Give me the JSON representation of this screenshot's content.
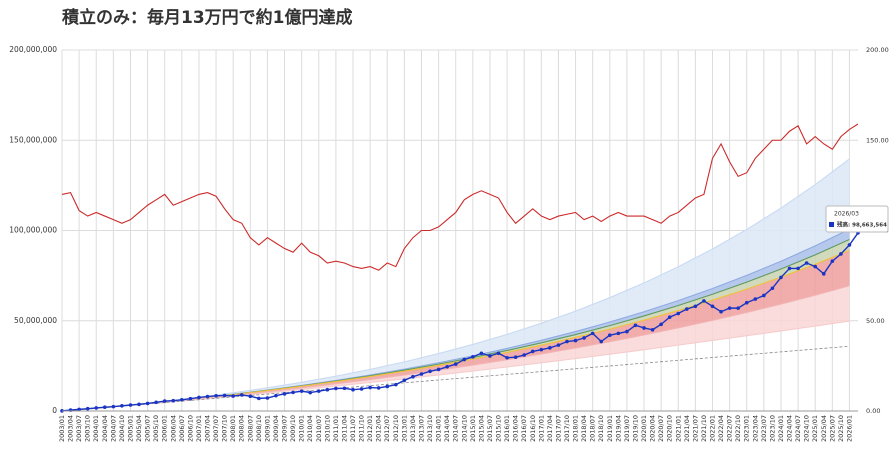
{
  "chart_data": {
    "type": "line",
    "title": "積立のみ：毎月13万円で約1億円達成",
    "categories": [
      "2003/01",
      "2003/04",
      "2003/07",
      "2003/10",
      "2004/01",
      "2004/04",
      "2004/07",
      "2004/10",
      "2005/01",
      "2005/04",
      "2005/07",
      "2005/10",
      "2006/01",
      "2006/04",
      "2006/07",
      "2006/10",
      "2007/01",
      "2007/04",
      "2007/07",
      "2007/10",
      "2008/01",
      "2008/04",
      "2008/07",
      "2008/10",
      "2009/01",
      "2009/04",
      "2009/07",
      "2009/10",
      "2010/01",
      "2010/04",
      "2010/07",
      "2010/10",
      "2011/01",
      "2011/04",
      "2011/07",
      "2011/10",
      "2012/01",
      "2012/04",
      "2012/07",
      "2012/10",
      "2013/01",
      "2013/04",
      "2013/07",
      "2013/10",
      "2014/01",
      "2014/04",
      "2014/07",
      "2014/10",
      "2015/01",
      "2015/04",
      "2015/07",
      "2015/10",
      "2016/01",
      "2016/04",
      "2016/07",
      "2016/10",
      "2017/01",
      "2017/04",
      "2017/07",
      "2017/10",
      "2018/01",
      "2018/04",
      "2018/07",
      "2018/10",
      "2019/01",
      "2019/04",
      "2019/07",
      "2019/10",
      "2020/01",
      "2020/04",
      "2020/07",
      "2020/10",
      "2021/01",
      "2021/04",
      "2021/07",
      "2021/10",
      "2022/01",
      "2022/04",
      "2022/07",
      "2022/10",
      "2023/01",
      "2023/04",
      "2023/07",
      "2023/10",
      "2024/01",
      "2024/04",
      "2024/07",
      "2024/10",
      "2025/01",
      "2025/04",
      "2025/07",
      "2025/10",
      "2026/01",
      null
    ],
    "series": [
      {
        "color": "#cc2a2a",
        "axis": "y2",
        "values": [
          120,
          121,
          111,
          108,
          110,
          108,
          106,
          104,
          106,
          110,
          114,
          117,
          120,
          114,
          116,
          118,
          120,
          121,
          119,
          112,
          106,
          104,
          96,
          92,
          96,
          93,
          90,
          88,
          93,
          88,
          86,
          82,
          83,
          82,
          80,
          79,
          80,
          78,
          82,
          80,
          90,
          96,
          100,
          100,
          102,
          106,
          110,
          117,
          120,
          122,
          120,
          118,
          110,
          104,
          108,
          112,
          108,
          106,
          108,
          109,
          110,
          106,
          108,
          105,
          108,
          110,
          108,
          108,
          108,
          106,
          104,
          108,
          110,
          114,
          118,
          120,
          140,
          148,
          138,
          130,
          132,
          140,
          145,
          150,
          150,
          155,
          158,
          148,
          152,
          148,
          145,
          152,
          156,
          159
        ]
      },
      {
        "color": "#1a35c4",
        "markers": true,
        "values": [
          100000,
          500000,
          900000,
          1300000,
          1700000,
          2100000,
          2400000,
          2900000,
          3300000,
          3700000,
          4200000,
          4800000,
          5500000,
          5700000,
          6200000,
          6800000,
          7500000,
          8000000,
          8400000,
          8600000,
          8300000,
          8900000,
          8200000,
          7000000,
          7200000,
          8500000,
          9500000,
          10300000,
          11000000,
          10200000,
          11000000,
          11800000,
          12500000,
          12600000,
          11800000,
          12200000,
          13000000,
          12800000,
          13600000,
          14600000,
          17000000,
          19000000,
          20500000,
          22000000,
          23000000,
          24500000,
          26000000,
          28500000,
          30000000,
          32000000,
          30500000,
          32000000,
          29500000,
          29800000,
          31000000,
          33000000,
          34000000,
          35000000,
          36500000,
          38500000,
          39000000,
          40500000,
          43000000,
          38500000,
          42000000,
          43000000,
          44000000,
          47500000,
          46000000,
          45000000,
          48000000,
          52000000,
          54000000,
          56500000,
          58000000,
          61000000,
          58000000,
          55000000,
          57000000,
          57000000,
          60000000,
          62000000,
          64000000,
          68000000,
          74000000,
          79000000,
          79000000,
          82000000,
          80000000,
          76000000,
          83000000,
          87000000,
          92000000,
          98663564
        ]
      }
    ],
    "projection": {
      "x": [
        "2003/01",
        "2004/01",
        "2005/01",
        "2006/01",
        "2007/01",
        "2008/01",
        "2009/01",
        "2010/01",
        "2011/01",
        "2012/01",
        "2013/01",
        "2014/01",
        "2015/01",
        "2016/01",
        "2017/01",
        "2018/01",
        "2019/01",
        "2020/01",
        "2021/01",
        "2022/01",
        "2023/01",
        "2024/01",
        "2025/01",
        "2026/01"
      ],
      "series": [
        {
          "color": "#c9daf2",
          "fill": "#dce7f7",
          "values": [
            0,
            1590000,
            3370000,
            5370000,
            7600000,
            10090000,
            12840000,
            15910000,
            19300000,
            23060000,
            27220000,
            31810000,
            36870000,
            42450000,
            48590000,
            55340000,
            62780000,
            70950000,
            79920000,
            89770000,
            100570000,
            112410000,
            125400000,
            139640000
          ]
        },
        {
          "color": "#8eaae0",
          "fill": "#a9c0ea",
          "values": [
            0,
            1560000,
            3260000,
            5100000,
            7100000,
            9270000,
            11620000,
            14170000,
            16940000,
            19940000,
            23190000,
            26720000,
            30540000,
            34680000,
            39160000,
            44020000,
            49290000,
            54990000,
            61170000,
            67870000,
            75120000,
            82970000,
            91480000,
            100690000
          ]
        },
        {
          "color": "#5f9a5f",
          "fill": "#c9d4b0",
          "values": [
            0,
            1560000,
            3240000,
            5060000,
            7030000,
            9150000,
            11440000,
            13920000,
            16590000,
            19480000,
            22600000,
            25970000,
            29610000,
            33540000,
            37780000,
            42360000,
            47310000,
            52660000,
            58430000,
            64660000,
            71390000,
            78660000,
            86510000,
            94990000
          ]
        },
        {
          "color": "#efc23a",
          "fill": "#ef9d9d",
          "values": [
            0,
            1560000,
            3240000,
            5030000,
            6970000,
            9070000,
            11300000,
            13710000,
            16290000,
            19080000,
            22070000,
            25290000,
            28750000,
            32450000,
            36450000,
            40750000,
            45370000,
            50310000,
            55660000,
            61380000,
            67540000,
            74140000,
            81270000,
            88960000
          ]
        },
        {
          "color": "#f2b3b3",
          "fill": "#f9d6d6",
          "values": [
            0,
            1540000,
            3180000,
            4890000,
            6700000,
            8640000,
            10650000,
            12790000,
            15040000,
            17440000,
            19960000,
            22630000,
            25450000,
            28410000,
            31570000,
            34900000,
            38420000,
            42130000,
            46070000,
            50220000,
            54610000,
            59240000,
            64160000,
            69380000
          ]
        },
        {
          "color": "#f6cccc",
          "values": [
            0,
            1530000,
            3120000,
            4740000,
            6440000,
            8200000,
            10000000,
            11870000,
            13800000,
            15800000,
            17850000,
            19970000,
            22150000,
            24380000,
            26690000,
            29060000,
            31490000,
            33950000,
            36490000,
            39070000,
            41700000,
            44360000,
            47070000,
            49820000
          ]
        },
        {
          "color": "#888888",
          "style": "dashed",
          "values": [
            0,
            1560000,
            3120000,
            4680000,
            6240000,
            7800000,
            9360000,
            10920000,
            12480000,
            14040000,
            15600000,
            17160000,
            18720000,
            20280000,
            21840000,
            23400000,
            24960000,
            26520000,
            28080000,
            29640000,
            31200000,
            32760000,
            34320000,
            35880000
          ]
        }
      ]
    },
    "ylim": [
      0,
      200000000
    ],
    "yticks": [
      0,
      {
        "value": 50000000,
        "label": "50,000,000"
      },
      {
        "value": 100000000,
        "label": "100,000,000"
      },
      {
        "value": 150000000,
        "label": "150,000,000"
      },
      {
        "value": 200000000,
        "label": "200,000,000"
      }
    ],
    "y2lim": [
      0,
      200
    ],
    "y2ticks": [
      {
        "value": 0,
        "label": "0.00"
      },
      {
        "value": 50,
        "label": "50.00"
      },
      {
        "value": 100,
        "label": "100.00"
      },
      {
        "value": 150,
        "label": "150.00"
      },
      {
        "value": 200,
        "label": "200.00"
      }
    ],
    "grid": true,
    "tooltip": {
      "title": "2026/03",
      "text": "残高: 98,663,564"
    }
  }
}
